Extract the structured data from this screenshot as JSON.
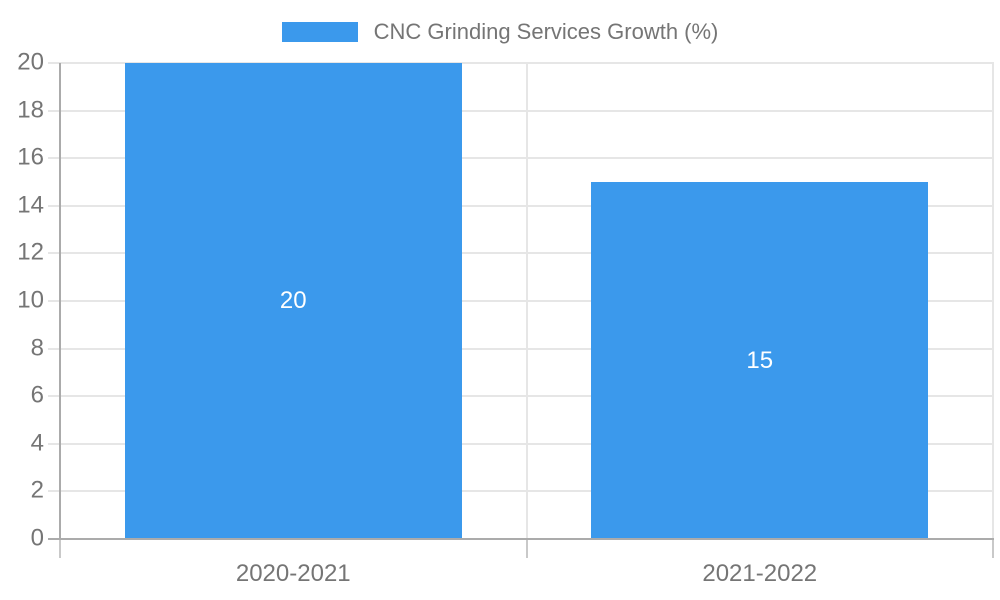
{
  "legend": {
    "series_label": "CNC Grinding Services Growth (%)"
  },
  "chart_data": {
    "type": "bar",
    "title": "CNC Grinding Services Growth (%)",
    "categories": [
      "2020-2021",
      "2021-2022"
    ],
    "series": [
      {
        "name": "CNC Grinding Services Growth (%)",
        "values": [
          20,
          15
        ]
      }
    ],
    "bar_labels": [
      "20",
      "15"
    ],
    "xlabel": "",
    "ylabel": "",
    "ylim": [
      0,
      20
    ],
    "yticks": [
      0,
      2,
      4,
      6,
      8,
      10,
      12,
      14,
      16,
      18,
      20
    ],
    "grid": true,
    "legend_position": "top-center",
    "colors": {
      "bar": "#3B99EC",
      "bar_label": "#FFFFFF",
      "axis_text": "#757575",
      "gridline": "#E6E6E6",
      "axis_line": "#ABABAB",
      "tick_below_axis": "#C9C9C9",
      "background": "#FFFFFF"
    }
  }
}
